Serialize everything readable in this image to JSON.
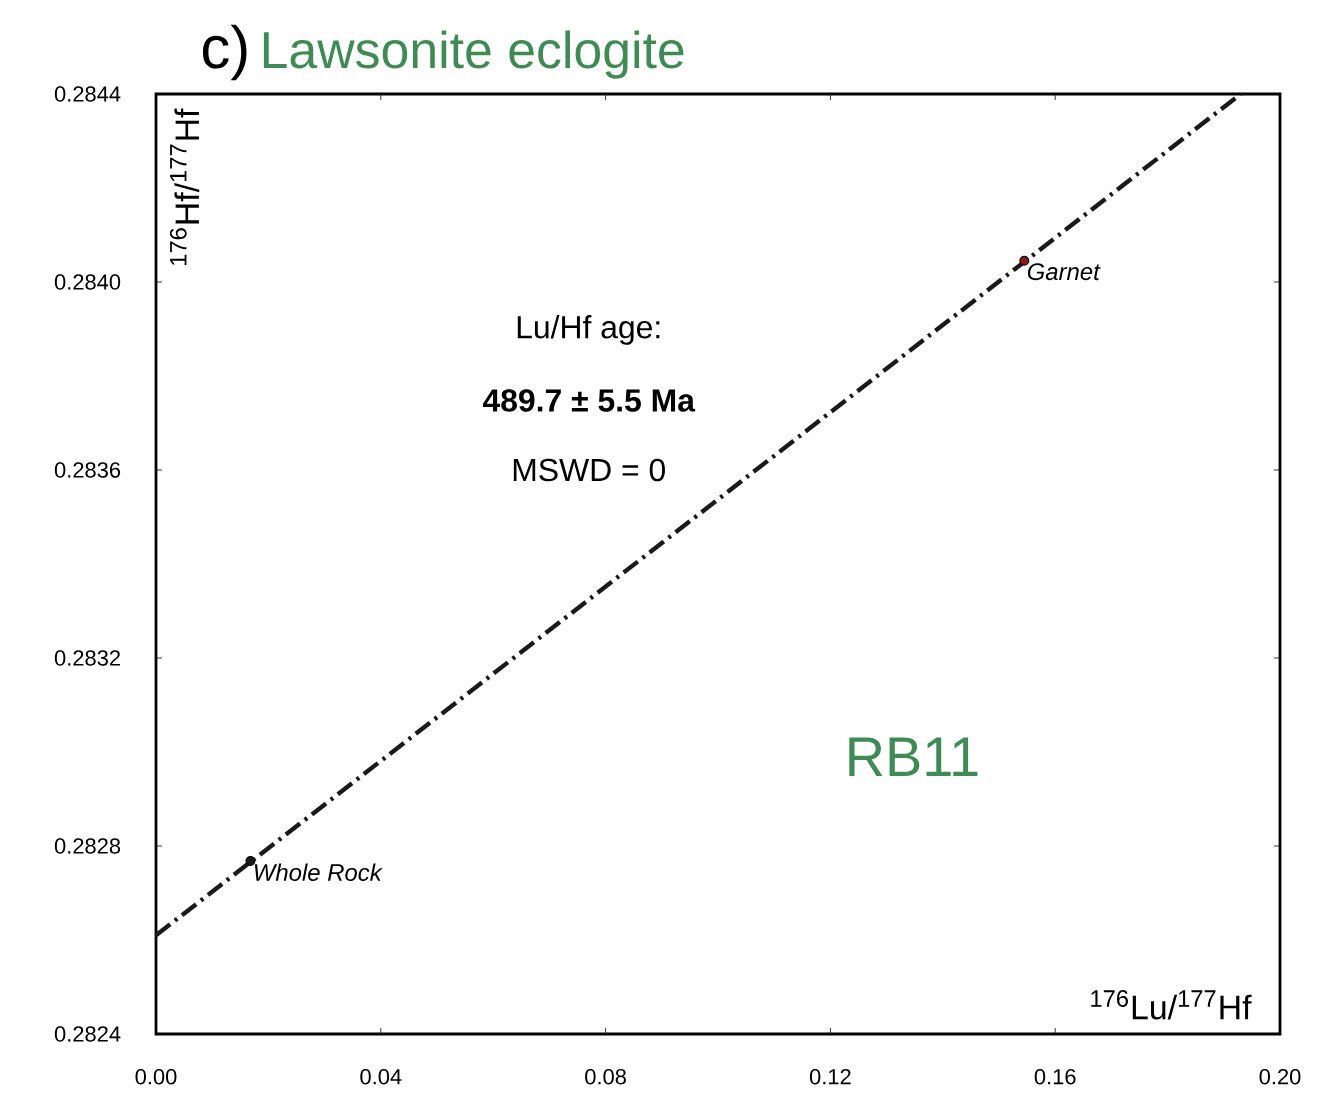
{
  "chart_data": {
    "type": "scatter",
    "title": "c)",
    "subtitle": "Lawsonite eclogite",
    "xlabel": "$^{176}$Lu/$^{177}$Hf",
    "ylabel": "$^{176}$Hf/$^{177}$Hf",
    "series": [
      {
        "type": "line",
        "color": "#1a1a1a",
        "line_style": "dashdot",
        "marker": "none",
        "x": [
          0,
          0.193
        ],
        "values": [
          0.28261,
          0.2844
        ]
      },
      {
        "colors": [
          "#1a1a1a",
          "#8b1a1a"
        ],
        "x": [
          0.0168,
          0.1545
        ],
        "values": [
          0.282768,
          0.284045
        ]
      }
    ],
    "annotations": [
      "Lu/Hf age:",
      "489.7 ± 5.5 Ma",
      "MSWD = 0",
      "RB11",
      {
        "text": "Whole Rock",
        "x": 0.0168,
        "y": 0.282768
      },
      {
        "text": "Garnet",
        "x": 0.1545,
        "y": 0.284045
      }
    ],
    "xlim": [
      0,
      0.2
    ],
    "ylim": [
      0.2824,
      0.2844
    ],
    "xticks": [
      {
        "value": 0,
        "label": "0.00"
      },
      {
        "value": 0.04,
        "label": "0.04"
      },
      {
        "value": 0.08,
        "label": "0.08"
      },
      {
        "value": 0.12,
        "label": "0.12"
      },
      {
        "value": 0.16,
        "label": "0.16"
      },
      {
        "value": 0.2,
        "label": "0.20"
      }
    ],
    "yticks": [
      0.2824,
      0.2828,
      0.2832,
      0.2836,
      {
        "value": 0.284,
        "label": "0.2840"
      },
      0.2844
    ],
    "marker": "circle"
  }
}
